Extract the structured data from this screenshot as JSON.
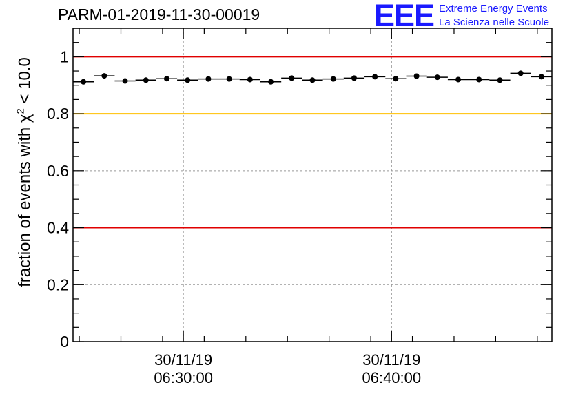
{
  "title": "PARM-01-2019-11-30-00019",
  "logo": {
    "mark": "EEE",
    "line1": "Extreme Energy Events",
    "line2": "La Scienza nelle Scuole"
  },
  "colors": {
    "red_line": "#e00000",
    "yellow_line": "#ffbf00",
    "grid": "#999999",
    "marker": "#000000",
    "logo": "#1a1aff"
  },
  "chart_data": {
    "type": "scatter",
    "title": "PARM-01-2019-11-30-00019",
    "ylabel_prefix": "fraction of events with χ",
    "ylabel_sup": "2",
    "ylabel_suffix": " < 10.0",
    "ylim": [
      0,
      1.1
    ],
    "yticks": [
      0,
      0.2,
      0.4,
      0.6,
      0.8,
      1
    ],
    "ytick_labels": [
      "0",
      "0.2",
      "0.4",
      "0.6",
      "0.8",
      "1"
    ],
    "xlim_minutes": [
      0,
      23
    ],
    "xticks": [
      {
        "minute": 5.3,
        "date": "30/11/19",
        "time": "06:30:00"
      },
      {
        "minute": 15.3,
        "date": "30/11/19",
        "time": "06:40:00"
      }
    ],
    "reference_lines": [
      {
        "y": 1.0,
        "color": "red"
      },
      {
        "y": 0.8,
        "color": "yellow"
      },
      {
        "y": 0.4,
        "color": "red"
      }
    ],
    "bin_width_minutes": 1,
    "points": [
      {
        "x": 0.5,
        "y": 0.912
      },
      {
        "x": 1.5,
        "y": 0.933
      },
      {
        "x": 2.5,
        "y": 0.915
      },
      {
        "x": 3.5,
        "y": 0.918
      },
      {
        "x": 4.5,
        "y": 0.923
      },
      {
        "x": 5.5,
        "y": 0.918
      },
      {
        "x": 6.5,
        "y": 0.922
      },
      {
        "x": 7.5,
        "y": 0.922
      },
      {
        "x": 8.5,
        "y": 0.92
      },
      {
        "x": 9.5,
        "y": 0.912
      },
      {
        "x": 10.5,
        "y": 0.925
      },
      {
        "x": 11.5,
        "y": 0.918
      },
      {
        "x": 12.5,
        "y": 0.922
      },
      {
        "x": 13.5,
        "y": 0.925
      },
      {
        "x": 14.5,
        "y": 0.93
      },
      {
        "x": 15.5,
        "y": 0.923
      },
      {
        "x": 16.5,
        "y": 0.932
      },
      {
        "x": 17.5,
        "y": 0.928
      },
      {
        "x": 18.5,
        "y": 0.92
      },
      {
        "x": 19.5,
        "y": 0.92
      },
      {
        "x": 20.5,
        "y": 0.918
      },
      {
        "x": 21.5,
        "y": 0.942
      },
      {
        "x": 22.5,
        "y": 0.93
      }
    ]
  }
}
